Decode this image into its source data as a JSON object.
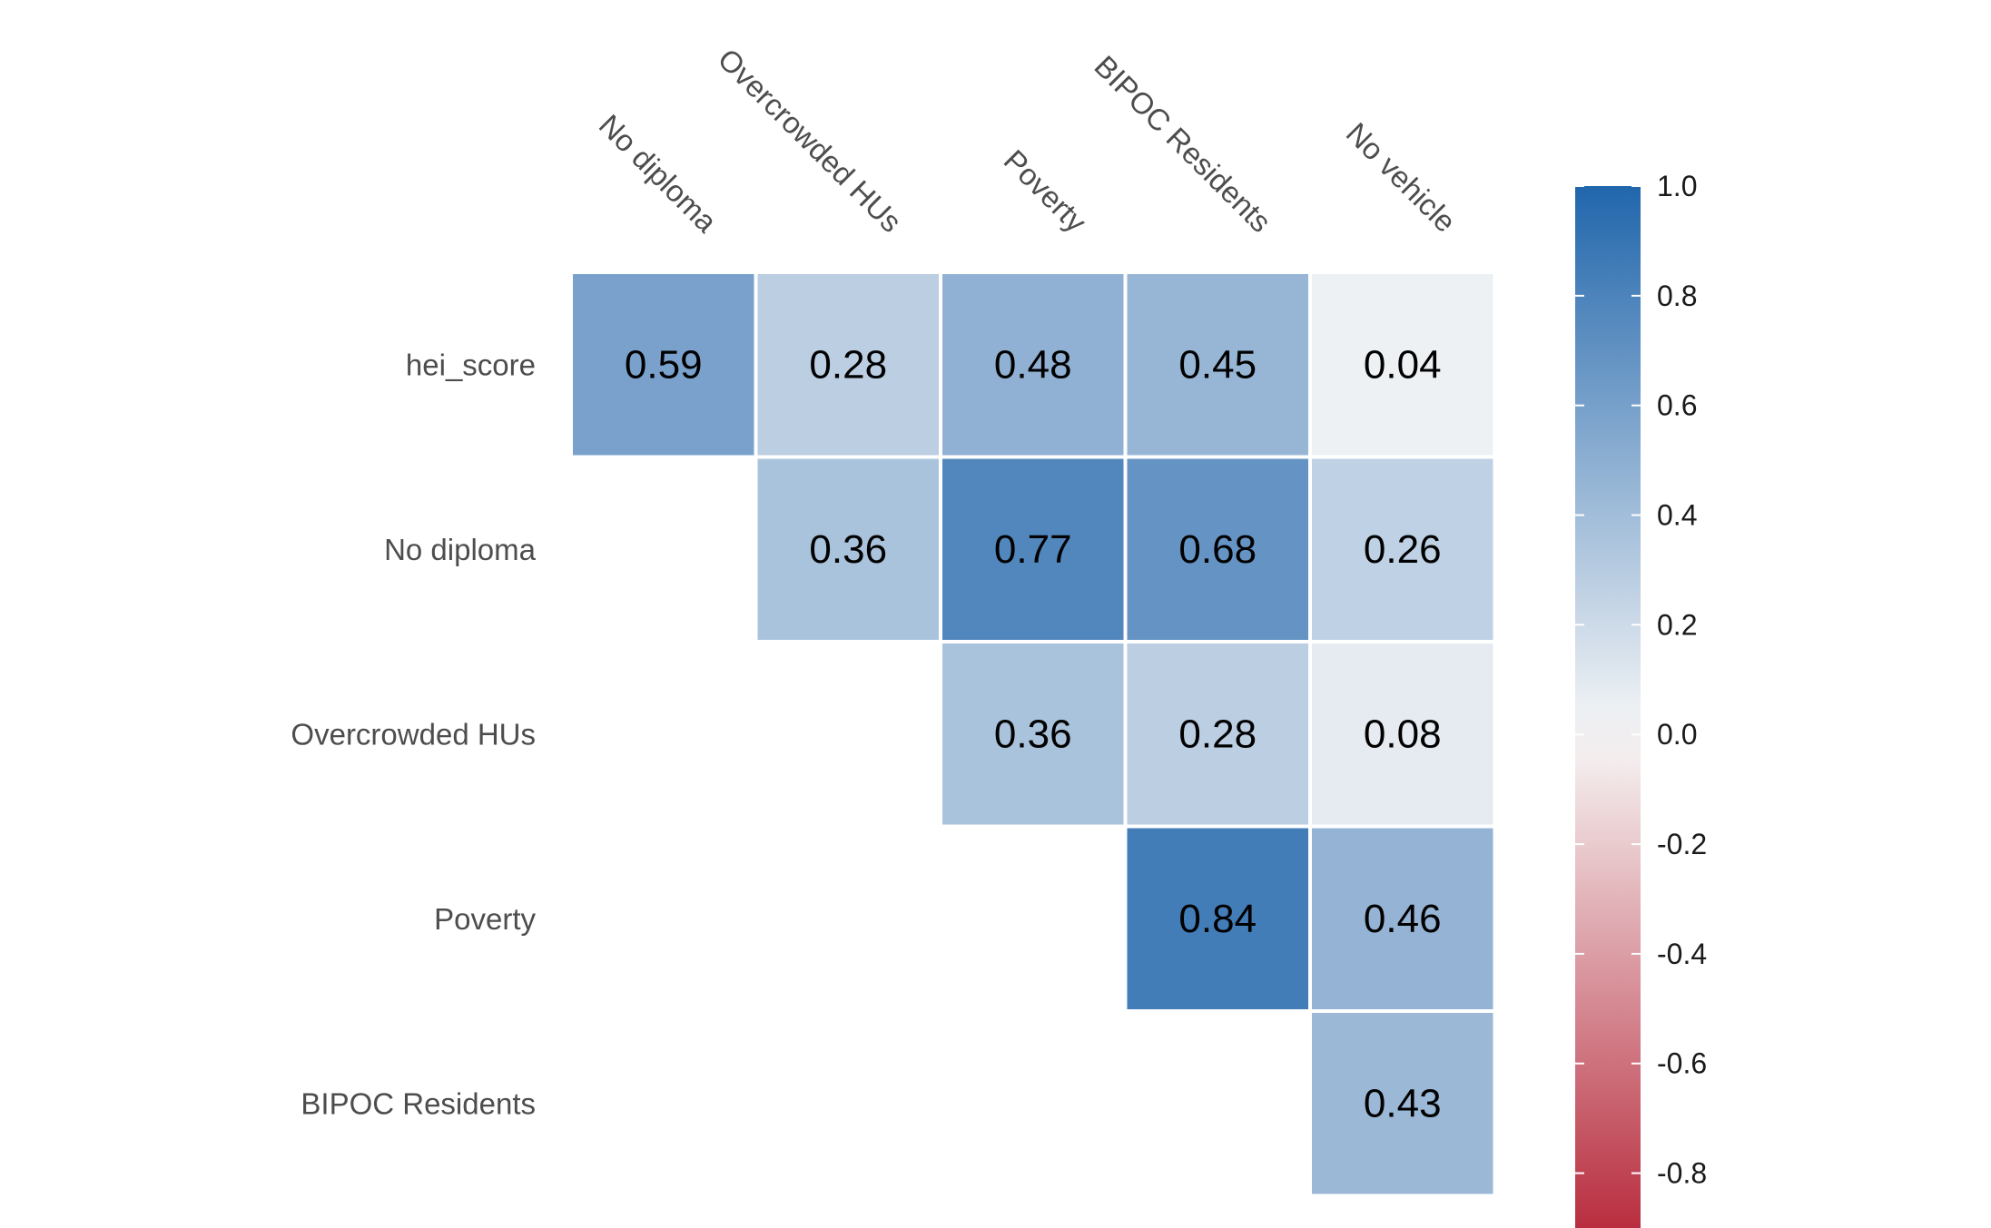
{
  "chart_data": {
    "type": "heatmap",
    "subtype": "correlation-lower-triangle",
    "row_labels": [
      "hei_score",
      "No diploma",
      "Overcrowded HUs",
      "Poverty",
      "BIPOC Residents"
    ],
    "col_labels": [
      "No diploma",
      "Overcrowded HUs",
      "Poverty",
      "BIPOC Residents",
      "No vehicle"
    ],
    "cells": [
      {
        "row": "hei_score",
        "col": "No diploma",
        "value": 0.59,
        "label": "0.59"
      },
      {
        "row": "hei_score",
        "col": "Overcrowded HUs",
        "value": 0.28,
        "label": "0.28"
      },
      {
        "row": "hei_score",
        "col": "Poverty",
        "value": 0.48,
        "label": "0.48"
      },
      {
        "row": "hei_score",
        "col": "BIPOC Residents",
        "value": 0.45,
        "label": "0.45"
      },
      {
        "row": "hei_score",
        "col": "No vehicle",
        "value": 0.04,
        "label": "0.04"
      },
      {
        "row": "No diploma",
        "col": "Overcrowded HUs",
        "value": 0.36,
        "label": "0.36"
      },
      {
        "row": "No diploma",
        "col": "Poverty",
        "value": 0.77,
        "label": "0.77"
      },
      {
        "row": "No diploma",
        "col": "BIPOC Residents",
        "value": 0.68,
        "label": "0.68"
      },
      {
        "row": "No diploma",
        "col": "No vehicle",
        "value": 0.26,
        "label": "0.26"
      },
      {
        "row": "Overcrowded HUs",
        "col": "Poverty",
        "value": 0.36,
        "label": "0.36"
      },
      {
        "row": "Overcrowded HUs",
        "col": "BIPOC Residents",
        "value": 0.28,
        "label": "0.28"
      },
      {
        "row": "Overcrowded HUs",
        "col": "No vehicle",
        "value": 0.08,
        "label": "0.08"
      },
      {
        "row": "Poverty",
        "col": "BIPOC Residents",
        "value": 0.84,
        "label": "0.84"
      },
      {
        "row": "Poverty",
        "col": "No vehicle",
        "value": 0.46,
        "label": "0.46"
      },
      {
        "row": "BIPOC Residents",
        "col": "No vehicle",
        "value": 0.43,
        "label": "0.43"
      }
    ],
    "colorbar": {
      "range": [
        -0.9,
        1.0
      ],
      "ticks": [
        1.0,
        0.8,
        0.6,
        0.4,
        0.2,
        0.0,
        -0.2,
        -0.4,
        -0.6,
        -0.8
      ],
      "tick_labels": [
        "1.0",
        "0.8",
        "0.6",
        "0.4",
        "0.2",
        "0.0",
        "-0.2",
        "-0.4",
        "-0.6",
        "-0.8"
      ],
      "colors": {
        "low": "#b2182b",
        "mid": "#f7f7f7",
        "high": "#2166ac"
      },
      "placement": "right"
    },
    "title": "",
    "xlabel": "",
    "ylabel": "",
    "grid": false
  }
}
